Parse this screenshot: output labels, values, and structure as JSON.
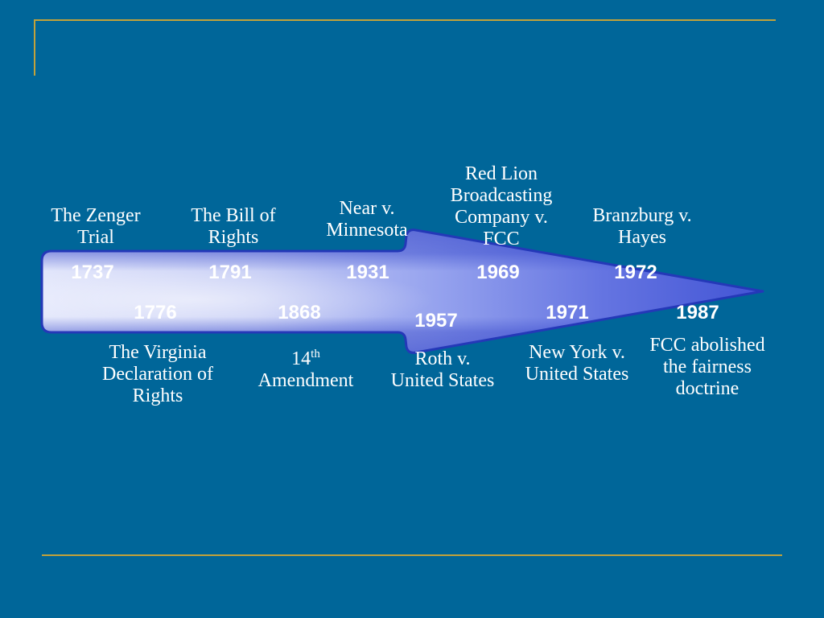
{
  "colors": {
    "background": "#006699",
    "rule": "#c2a23a",
    "text": "#ffffff",
    "arrow_edge": "#2438b8"
  },
  "timeline": {
    "events": [
      {
        "year": "1737",
        "label_lines": [
          "The Zenger",
          "Trial"
        ]
      },
      {
        "year": "1776",
        "label_lines": [
          "The Virginia",
          "Declaration of",
          "Rights"
        ]
      },
      {
        "year": "1791",
        "label_lines": [
          "The Bill of",
          "Rights"
        ]
      },
      {
        "year": "1868",
        "label_lines": [
          "14",
          "Amendment"
        ],
        "label_superscript": "th"
      },
      {
        "year": "1931",
        "label_lines": [
          "Near v.",
          "Minnesota"
        ]
      },
      {
        "year": "1957",
        "label_lines": [
          "Roth v.",
          "United States"
        ]
      },
      {
        "year": "1969",
        "label_lines": [
          "Red Lion",
          "Broadcasting",
          "Company v.",
          "FCC"
        ]
      },
      {
        "year": "1971",
        "label_lines": [
          "New York v.",
          "United States"
        ]
      },
      {
        "year": "1972",
        "label_lines": [
          "Branzburg v.",
          "Hayes"
        ]
      },
      {
        "year": "1987",
        "label_lines": [
          "FCC abolished",
          "the fairness",
          "doctrine"
        ]
      }
    ]
  }
}
